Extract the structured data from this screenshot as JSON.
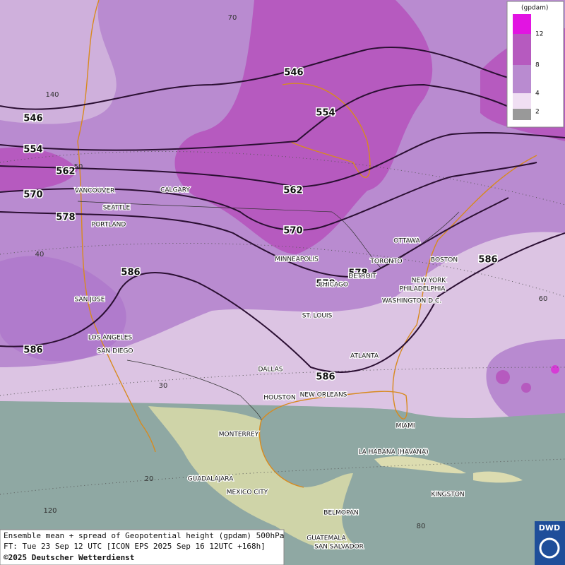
{
  "legend": {
    "unit": "(gpdam)",
    "ticks": [
      "12",
      "8",
      "4",
      "2"
    ]
  },
  "contour_labels": [
    546,
    546,
    554,
    554,
    562,
    562,
    570,
    570,
    578,
    578,
    578,
    586,
    586,
    586,
    586
  ],
  "cities": [
    "VANCOUVER",
    "CALGARY",
    "SEATTLE",
    "PORTLAND",
    "MINNEAPOLIS",
    "OTTAWA",
    "TORONTO",
    "DETROIT",
    "CHICAGO",
    "BOSTON",
    "NEW YORK",
    "PHILADELPHIA",
    "WASHINGTON D.C.",
    "SAN JOSE",
    "ST. LOUIS",
    "LOS ANGELES",
    "SAN DIEGO",
    "ATLANTA",
    "DALLAS",
    "HOUSTON",
    "NEW ORLEANS",
    "MIAMI",
    "MONTERREY",
    "LA HABANA (HAVANA)",
    "GUADALAJARA",
    "MEXICO CITY",
    "KINGSTON",
    "BELMOPAN",
    "GUATEMALA",
    "SAN SALVADOR"
  ],
  "graticule_labels": [
    "70",
    "140",
    "50",
    "40",
    "30",
    "20",
    "120",
    "60",
    "80"
  ],
  "caption": [
    "Ensemble mean + spread of Geopotential height (gpdam) 500hPa",
    "FT: Tue 23 Sep 12 UTC [ICON EPS 2025 Sep 16 12UTC +168h]",
    "©2025 Deutscher Wetterdienst"
  ],
  "logo": "DWD"
}
